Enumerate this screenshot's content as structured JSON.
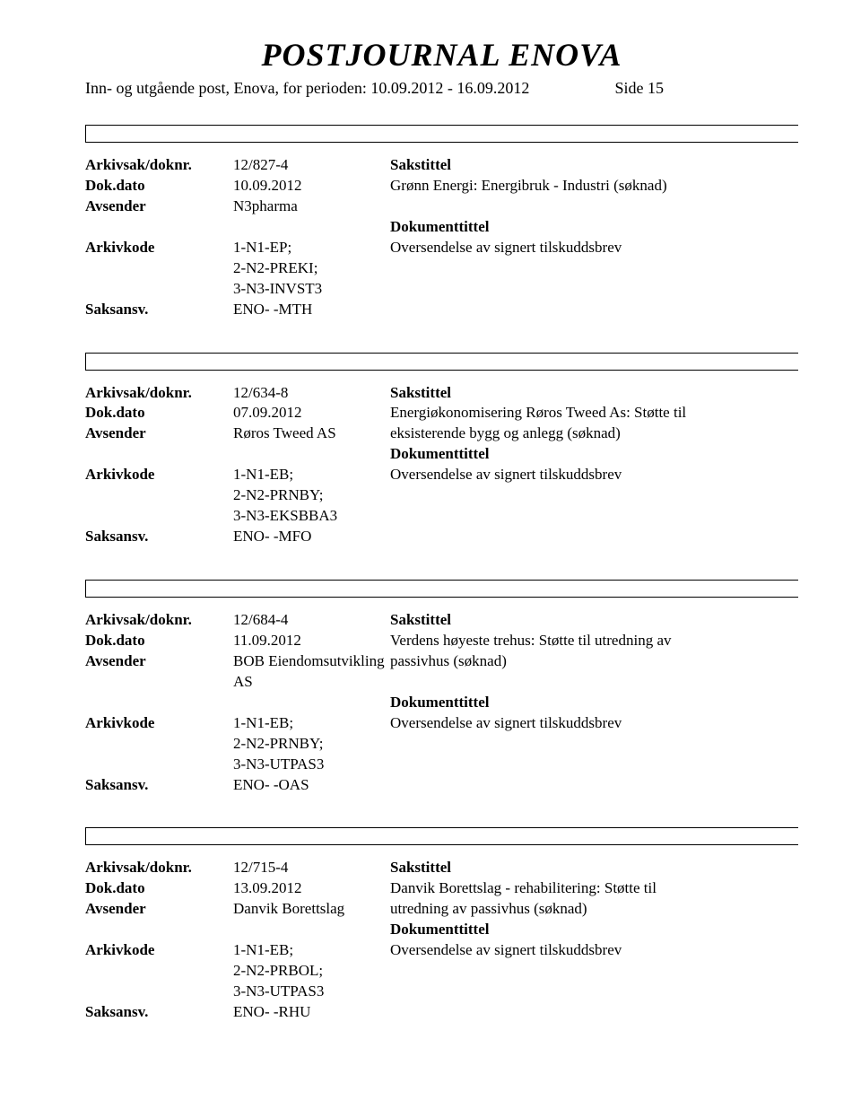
{
  "masthead": "POSTJOURNAL ENOVA",
  "subhead": "Inn- og utgående post, Enova, for perioden: 10.09.2012 - 16.09.2012",
  "side_label": "Side 15",
  "labels": {
    "arkivsak": "Arkivsak/doknr.",
    "dokdato": "Dok.dato",
    "avsender": "Avsender",
    "arkivkode": "Arkivkode",
    "saksansv": "Saksansv.",
    "sakstittel": "Sakstittel",
    "dokumenttittel": "Dokumenttittel"
  },
  "cases": [
    {
      "arkivsak": "12/827-4",
      "dokdato": "10.09.2012",
      "avsender": "N3pharma",
      "arkivkode_lines": [
        "1-N1-EP;",
        "2-N2-PREKI;",
        "3-N3-INVST3"
      ],
      "saksansv": "ENO- -MTH",
      "sakstittel_lines": [
        "Grønn Energi: Energibruk - Industri (søknad)"
      ],
      "doktittel_lines": [
        "Oversendelse av signert tilskuddsbrev"
      ]
    },
    {
      "arkivsak": "12/634-8",
      "dokdato": "07.09.2012",
      "avsender": "Røros Tweed AS",
      "arkivkode_lines": [
        "1-N1-EB;",
        "2-N2-PRNBY;",
        "3-N3-EKSBBA3"
      ],
      "saksansv": "ENO- -MFO",
      "sakstittel_lines": [
        "Energiøkonomisering Røros Tweed As: Støtte til",
        "eksisterende bygg og anlegg (søknad)"
      ],
      "doktittel_lines": [
        "Oversendelse av signert tilskuddsbrev"
      ]
    },
    {
      "arkivsak": "12/684-4",
      "dokdato": "11.09.2012",
      "avsender": "BOB Eiendomsutvikling AS",
      "arkivkode_lines": [
        "1-N1-EB;",
        "2-N2-PRNBY;",
        "3-N3-UTPAS3"
      ],
      "saksansv": "ENO- -OAS",
      "sakstittel_lines": [
        "Verdens høyeste trehus: Støtte til utredning av",
        "passivhus (søknad)"
      ],
      "doktittel_lines": [
        "Oversendelse av signert tilskuddsbrev"
      ]
    },
    {
      "arkivsak": "12/715-4",
      "dokdato": "13.09.2012",
      "avsender": "Danvik Borettslag",
      "arkivkode_lines": [
        "1-N1-EB;",
        "2-N2-PRBOL;",
        "3-N3-UTPAS3"
      ],
      "saksansv": "ENO- -RHU",
      "sakstittel_lines": [
        "Danvik Borettslag - rehabilitering: Støtte til",
        "utredning av passivhus (søknad)"
      ],
      "doktittel_lines": [
        "Oversendelse av signert tilskuddsbrev"
      ]
    }
  ]
}
